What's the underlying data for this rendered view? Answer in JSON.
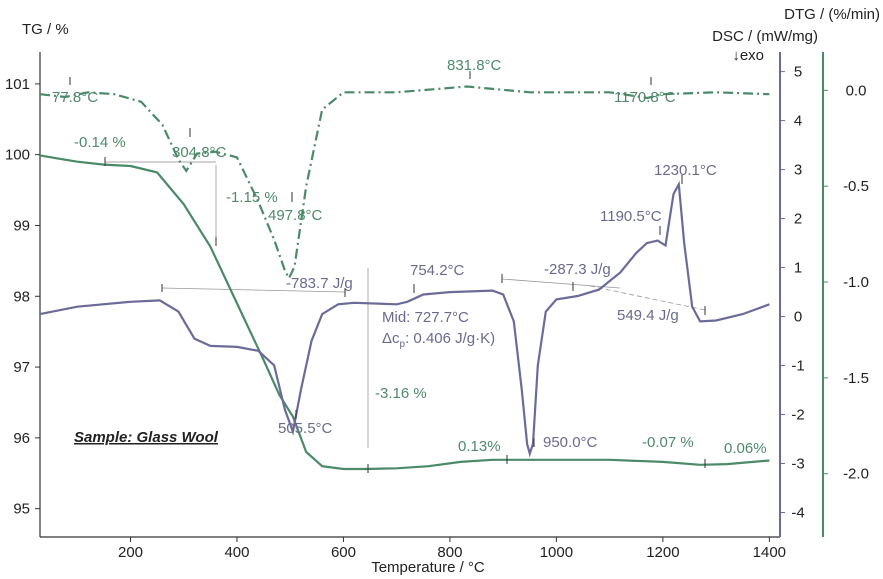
{
  "chart_data": {
    "type": "line",
    "xlabel": "Temperature / °C",
    "x_ticks": [
      200,
      400,
      600,
      800,
      1000,
      1200,
      1400
    ],
    "xlim": [
      30,
      1420
    ],
    "axes": {
      "tg": {
        "label": "TG / %",
        "ylim": [
          94.6,
          101.45
        ],
        "ticks": [
          95,
          96,
          97,
          98,
          99,
          100,
          101
        ],
        "color": "#4a8a68"
      },
      "dsc": {
        "label": "DSC / (mW/mg)",
        "sublabel": "↓exo",
        "ylim": [
          -4.5,
          5.4
        ],
        "ticks": [
          -4,
          -3,
          -2,
          -1,
          0,
          1,
          2,
          3,
          4,
          5
        ],
        "color": "#6b6b99"
      },
      "dtg": {
        "label": "DTG / (%/min)",
        "ylim": [
          -2.33,
          0.2
        ],
        "ticks": [
          0.0,
          -0.5,
          -1.0,
          -1.5,
          -2.0
        ],
        "tick_labels": [
          "0.0",
          "-0.5",
          "-1.0",
          "-1.5",
          "-2.0"
        ],
        "color": "#4a8a68"
      }
    },
    "sample_label": "Sample: Glass Wool",
    "series": [
      {
        "axis": "tg",
        "style": "solid",
        "color": "#4a8a68",
        "x": [
          30,
          60,
          100,
          150,
          200,
          250,
          300,
          350,
          400,
          450,
          480,
          505,
          530,
          560,
          600,
          640,
          700,
          760,
          820,
          880,
          900,
          1000,
          1100,
          1200,
          1270,
          1320,
          1400
        ],
        "y": [
          99.99,
          99.95,
          99.9,
          99.86,
          99.84,
          99.75,
          99.3,
          98.7,
          97.9,
          97.1,
          96.6,
          96.3,
          95.8,
          95.6,
          95.56,
          95.56,
          95.57,
          95.6,
          95.66,
          95.69,
          95.69,
          95.69,
          95.69,
          95.66,
          95.62,
          95.63,
          95.68
        ]
      },
      {
        "axis": "dsc",
        "style": "solid",
        "color": "#6b6b99",
        "x": [
          30,
          100,
          200,
          255,
          290,
          320,
          350,
          400,
          440,
          470,
          490,
          505,
          520,
          540,
          560,
          590,
          620,
          700,
          720,
          750,
          800,
          880,
          900,
          920,
          935,
          945,
          950,
          956,
          965,
          980,
          1000,
          1040,
          1080,
          1120,
          1150,
          1170,
          1190,
          1205,
          1220,
          1230,
          1240,
          1255,
          1270,
          1300,
          1350,
          1400
        ],
        "y": [
          0.05,
          0.2,
          0.3,
          0.33,
          0.1,
          -0.45,
          -0.6,
          -0.62,
          -0.7,
          -1.0,
          -1.9,
          -2.35,
          -1.5,
          -0.5,
          0.05,
          0.25,
          0.28,
          0.25,
          0.3,
          0.45,
          0.5,
          0.53,
          0.45,
          -0.1,
          -1.5,
          -2.6,
          -2.8,
          -2.6,
          -1.0,
          0.1,
          0.35,
          0.42,
          0.55,
          0.9,
          1.3,
          1.5,
          1.55,
          1.45,
          2.5,
          2.7,
          1.5,
          0.2,
          -0.1,
          -0.08,
          0.05,
          0.25
        ]
      },
      {
        "axis": "dtg",
        "style": "dashdot",
        "color": "#4a8a68",
        "x": [
          30,
          77.8,
          120,
          170,
          220,
          260,
          290,
          304.8,
          325,
          360,
          400,
          440,
          470,
          490,
          497.8,
          508,
          530,
          560,
          600,
          700,
          831.8,
          950,
          1100,
          1170.8,
          1200,
          1300,
          1400
        ],
        "y": [
          -0.02,
          -0.035,
          -0.01,
          -0.02,
          -0.06,
          -0.18,
          -0.36,
          -0.42,
          -0.33,
          -0.32,
          -0.35,
          -0.58,
          -0.78,
          -0.94,
          -0.98,
          -0.92,
          -0.5,
          -0.1,
          -0.01,
          -0.01,
          0.02,
          -0.01,
          -0.01,
          -0.04,
          -0.02,
          -0.01,
          -0.02
        ]
      }
    ],
    "annotations": {
      "dtg_77": "77.8°C",
      "dtg_305": "304.8°C",
      "dtg_498": "497.8°C",
      "dtg_832": "831.8°C",
      "dtg_1171": "1170.8°C",
      "tg_step1": "-0.14 %",
      "tg_step2": "-1.15 %",
      "tg_step3": "-3.16 %",
      "tg_step4": "0.13%",
      "tg_step5": "-0.07 %",
      "tg_step6": "0.06%",
      "dsc_enthalpy1": "-783.7 J/g",
      "dsc_754": "754.2°C",
      "dsc_505": "505.5°C",
      "dsc_mid": "Mid: 727.7°C",
      "dsc_dcp_label": "Δc",
      "dsc_dcp_sub": "p",
      "dsc_dcp_value": ": 0.406 J/g·K)",
      "dsc_950": "950.0°C",
      "dsc_enthalpy2": "-287.3 J/g",
      "dsc_1190": "1190.5°C",
      "dsc_1230": "1230.1°C",
      "dsc_enthalpy3": "549.4 J/g"
    }
  }
}
